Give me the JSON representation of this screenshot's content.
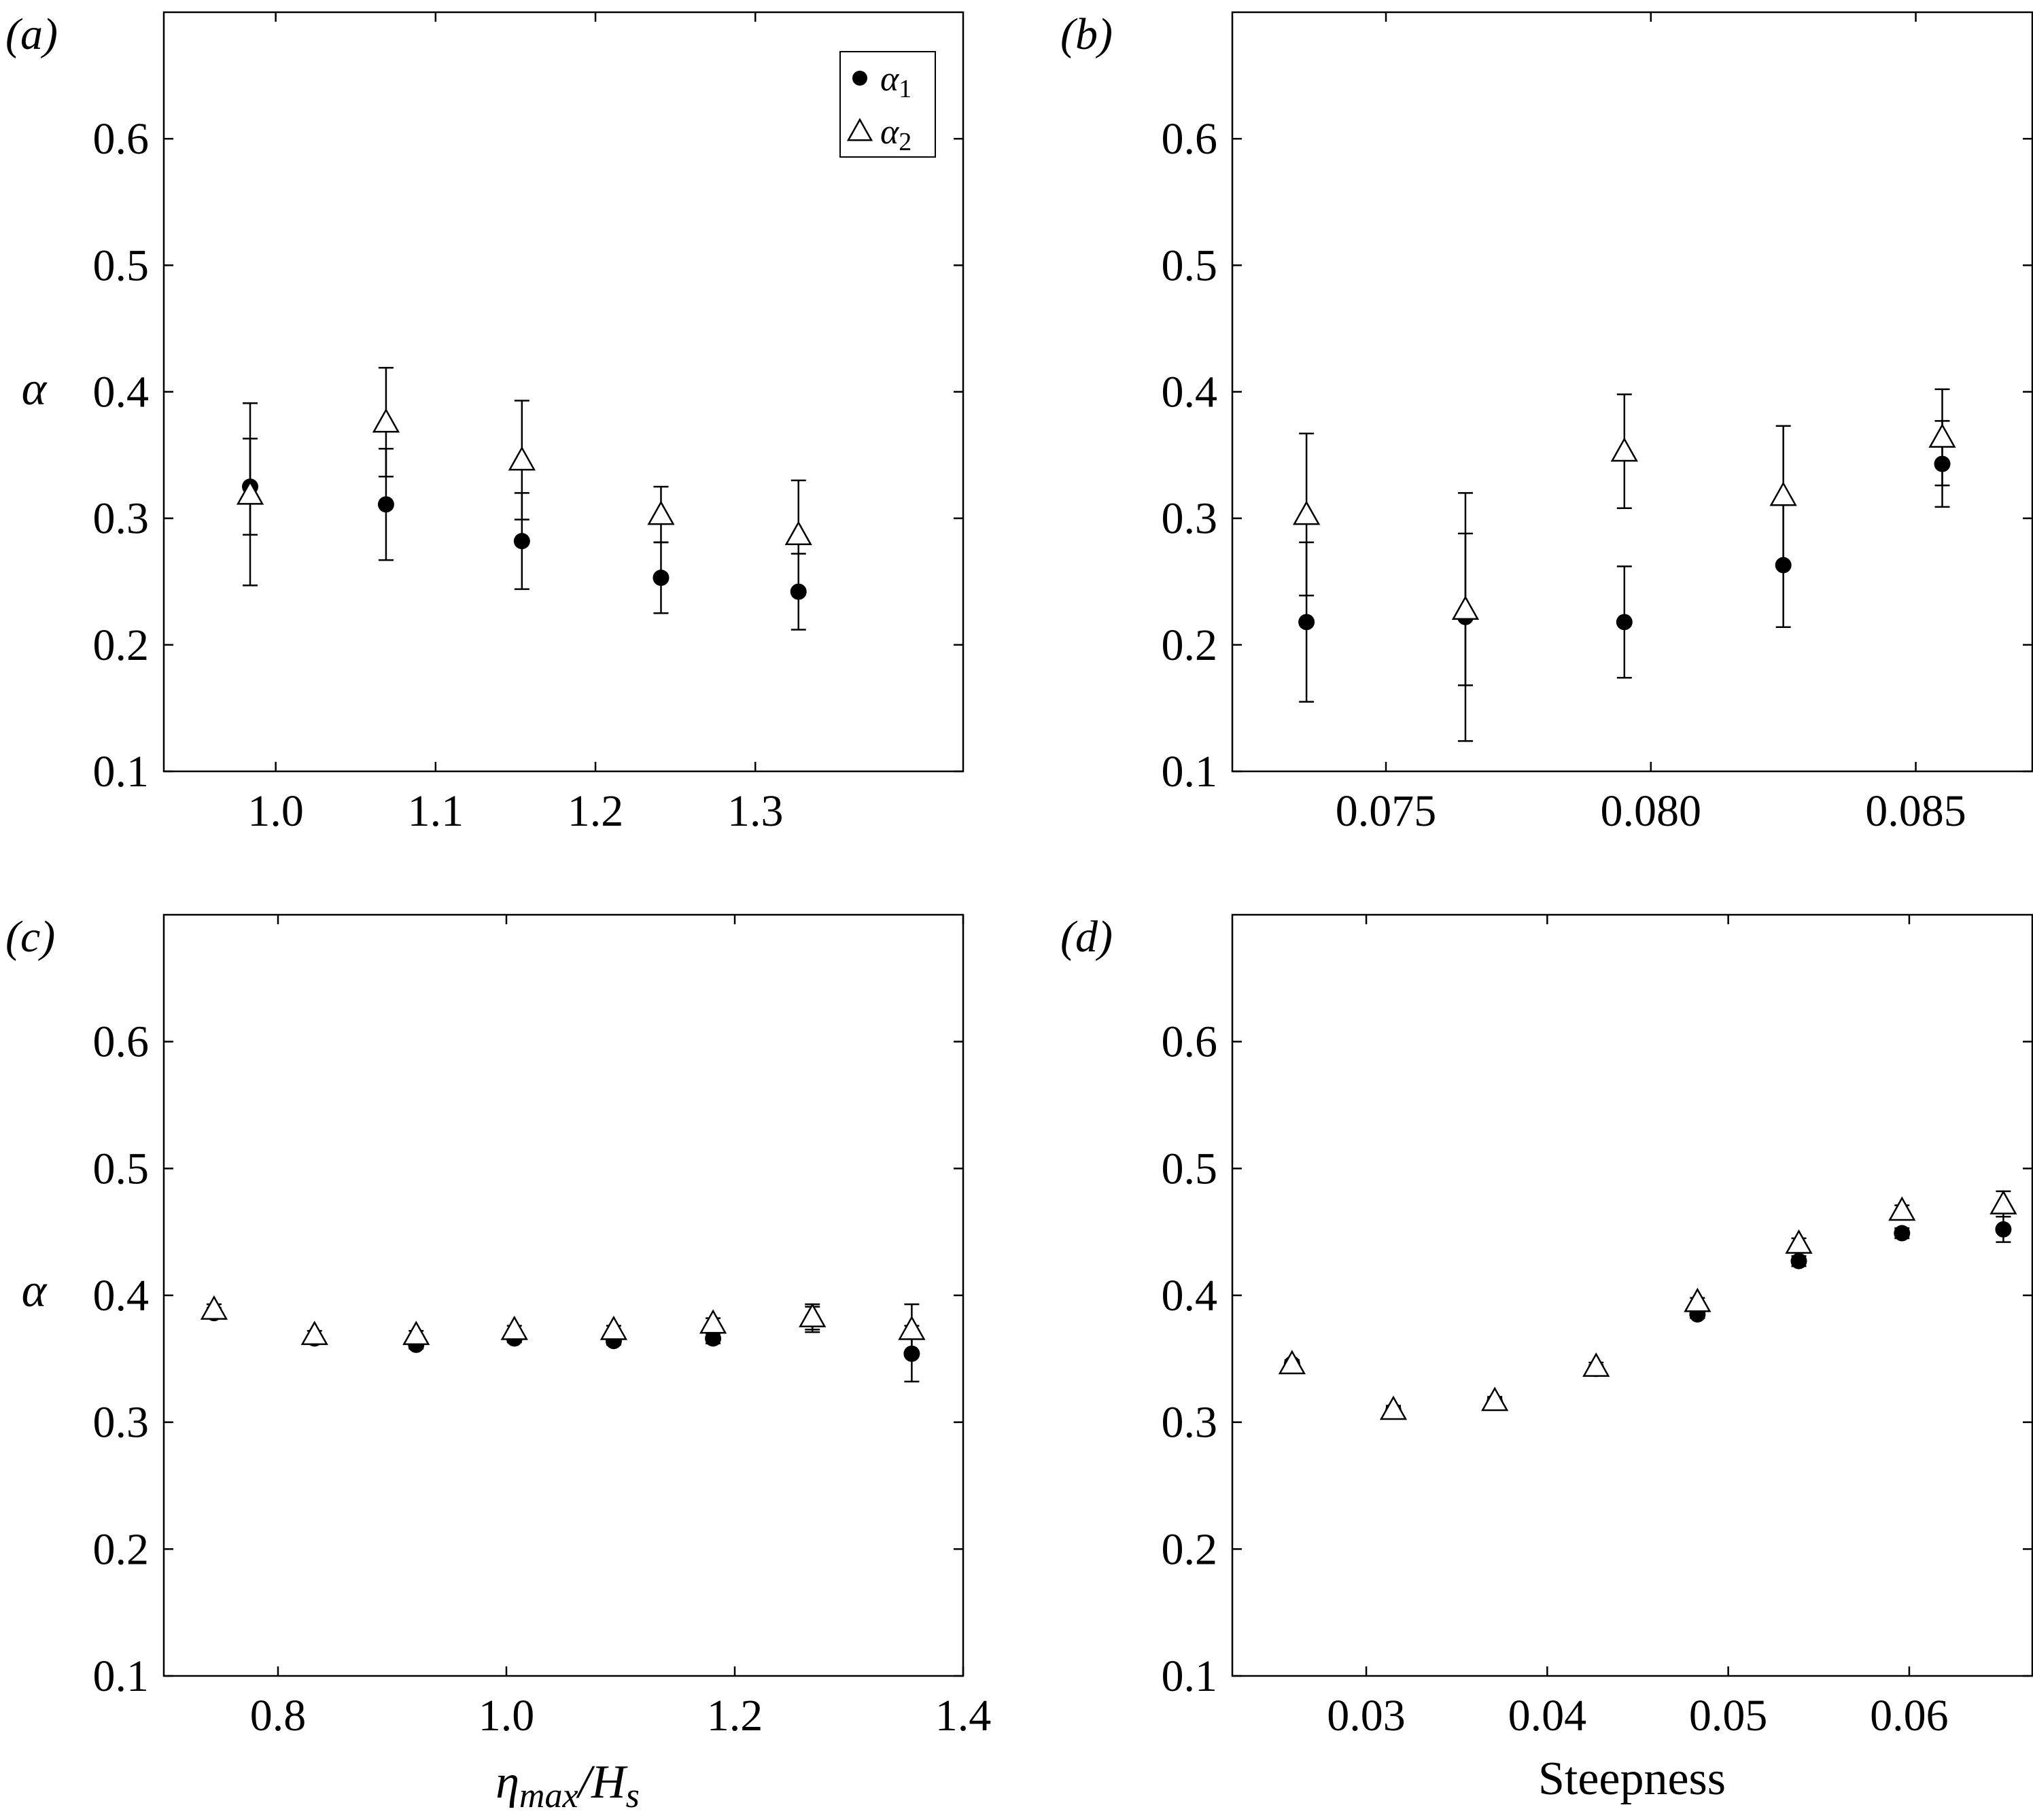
{
  "figure": {
    "legend": {
      "entries": [
        {
          "symbol": "filled-circle",
          "label": "α",
          "subscript": "1"
        },
        {
          "symbol": "open-triangle",
          "label": "α",
          "subscript": "2"
        }
      ]
    },
    "axis_labels": {
      "ylabel": "α",
      "xlabel_c_main": "η",
      "xlabel_c_sub1": "max",
      "xlabel_c_slash": "/H",
      "xlabel_c_sub2": "s",
      "xlabel_d": "Steepness"
    }
  },
  "chart_data": [
    {
      "panel": "(a)",
      "type": "scatter",
      "xlim": [
        0.93,
        1.43
      ],
      "ylim": [
        0.1,
        0.7
      ],
      "xticks": [
        "1.0",
        "1.1",
        "1.2",
        "1.3"
      ],
      "yticks": [
        "0.1",
        "0.2",
        "0.3",
        "0.4",
        "0.5",
        "0.6"
      ],
      "legend": "top-right",
      "series": [
        {
          "name": "α1",
          "marker": "filled-circle",
          "x": [
            0.984,
            1.069,
            1.154,
            1.241,
            1.327
          ],
          "y": [
            0.325,
            0.311,
            0.282,
            0.253,
            0.242
          ],
          "err": [
            0.038,
            0.044,
            0.038,
            0.028,
            0.03
          ]
        },
        {
          "name": "α2",
          "marker": "open-triangle",
          "x": [
            0.984,
            1.069,
            1.154,
            1.241,
            1.327
          ],
          "y": [
            0.319,
            0.376,
            0.346,
            0.303,
            0.287
          ],
          "err": [
            0.072,
            0.043,
            0.047,
            0.022,
            0.043
          ]
        }
      ]
    },
    {
      "panel": "(b)",
      "type": "scatter",
      "xlim": [
        0.0721,
        0.0872
      ],
      "ylim": [
        0.1,
        0.7
      ],
      "xticks": [
        "0.075",
        "0.080",
        "0.085"
      ],
      "yticks": [
        "0.1",
        "0.2",
        "0.3",
        "0.4",
        "0.5",
        "0.6"
      ],
      "series": [
        {
          "name": "α1",
          "marker": "filled-circle",
          "x": [
            0.0735,
            0.0765,
            0.0795,
            0.0825,
            0.0855
          ],
          "y": [
            0.218,
            0.222,
            0.218,
            0.263,
            0.343
          ],
          "err": [
            0.063,
            0.098,
            0.044,
            0.049,
            0.034
          ]
        },
        {
          "name": "α2",
          "marker": "open-triangle",
          "x": [
            0.0735,
            0.0765,
            0.0795,
            0.0825,
            0.0855
          ],
          "y": [
            0.303,
            0.228,
            0.353,
            0.318,
            0.364
          ],
          "err": [
            0.064,
            0.06,
            0.045,
            0.055,
            0.038
          ]
        }
      ]
    },
    {
      "panel": "(c)",
      "type": "scatter",
      "xlim": [
        0.7,
        1.4
      ],
      "ylim": [
        0.1,
        0.7
      ],
      "xticks": [
        "0.8",
        "1.0",
        "1.2",
        "1.4"
      ],
      "yticks": [
        "0.1",
        "0.2",
        "0.3",
        "0.4",
        "0.5",
        "0.6"
      ],
      "series": [
        {
          "name": "α1",
          "marker": "filled-circle",
          "x": [
            0.744,
            0.832,
            0.921,
            1.007,
            1.094,
            1.181,
            1.268,
            1.355
          ],
          "y": [
            0.386,
            0.366,
            0.361,
            0.366,
            0.364,
            0.366,
            0.381,
            0.354
          ],
          "err": [
            0.004,
            0.003,
            0.003,
            0.003,
            0.003,
            0.004,
            0.01,
            0.022
          ]
        },
        {
          "name": "α2",
          "marker": "open-triangle",
          "x": [
            0.744,
            0.832,
            0.921,
            1.007,
            1.094,
            1.181,
            1.268,
            1.355
          ],
          "y": [
            0.389,
            0.369,
            0.369,
            0.373,
            0.373,
            0.378,
            0.383,
            0.373
          ],
          "err": [
            0.004,
            0.003,
            0.003,
            0.003,
            0.003,
            0.004,
            0.01,
            0.02
          ]
        }
      ]
    },
    {
      "panel": "(d)",
      "type": "scatter",
      "xlim": [
        0.0226,
        0.0668
      ],
      "ylim": [
        0.1,
        0.7
      ],
      "xticks": [
        "0.03",
        "0.04",
        "0.05",
        "0.06"
      ],
      "yticks": [
        "0.1",
        "0.2",
        "0.3",
        "0.4",
        "0.5",
        "0.6"
      ],
      "series": [
        {
          "name": "α1",
          "marker": "filled-circle",
          "x": [
            0.0259,
            0.0315,
            0.0371,
            0.0427,
            0.0483,
            0.0539,
            0.0596,
            0.0652
          ],
          "y": [
            0.346,
            0.309,
            0.316,
            0.342,
            0.385,
            0.427,
            0.449,
            0.452
          ],
          "err": [
            0.003,
            0.003,
            0.003,
            0.003,
            0.003,
            0.004,
            0.004,
            0.01
          ]
        },
        {
          "name": "α2",
          "marker": "open-triangle",
          "x": [
            0.0259,
            0.0315,
            0.0371,
            0.0427,
            0.0483,
            0.0539,
            0.0596,
            0.0652
          ],
          "y": [
            0.346,
            0.31,
            0.317,
            0.344,
            0.395,
            0.441,
            0.467,
            0.472
          ],
          "err": [
            0.003,
            0.003,
            0.003,
            0.003,
            0.003,
            0.004,
            0.004,
            0.01
          ]
        }
      ]
    }
  ]
}
